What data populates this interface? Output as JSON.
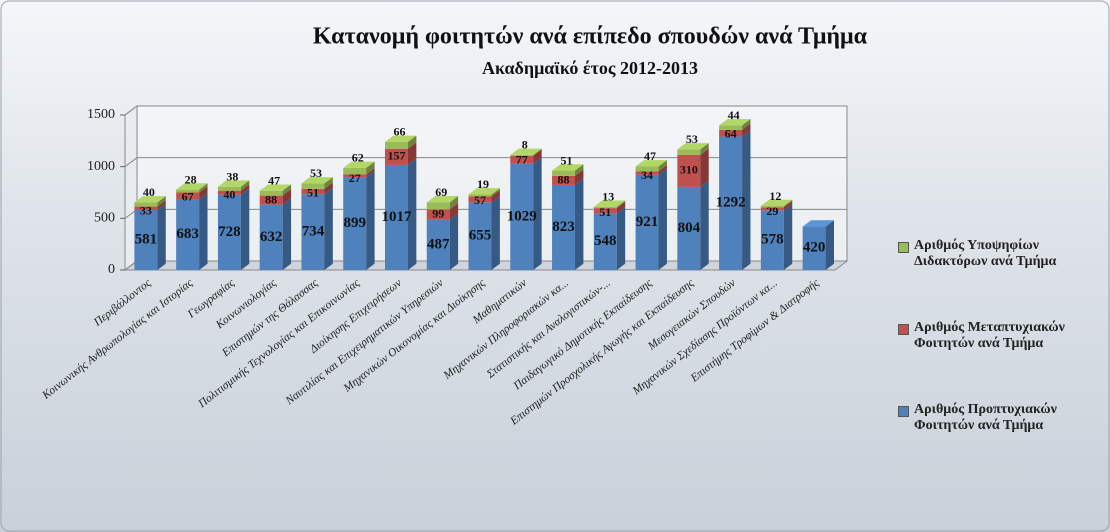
{
  "chart_data": {
    "type": "stacked_bar_3d",
    "title": "Κατανομή φοιτητών ανά επίπεδο σπουδών ανά Τμήμα",
    "subtitle": "Ακαδημαϊκό έτος 2012-2013",
    "categories": [
      "Περιβάλλοντος",
      "Κοινωνικής Ανθρωπολογίας και Ιστορίας",
      "Γεωγραφίας",
      "Κοινωνιολογίας",
      "Επιστημών της Θάλασσας",
      "Πολιτισμικής Τεχνολογίας και Επικοινωνίας",
      "Διοίκησης Επιχειρήσεων",
      "Ναυτιλίας και Επιχειρηματικών Υπηρεσιών",
      "Μηχανικών Οικονομίας και Διοίκησης",
      "Μαθηματικών",
      "Μηχανικών Πληροφοριακών κα...",
      "Στατιστικής και Αναλογιστικών-...",
      "Παιδαγωγικό Δημοτικής Εκπαίδευσης",
      "Επιστημών Προσχολικής Αγωγής και Εκπαίδευσης",
      "Μεσογειακών Σπουδών",
      "Μηχανικών Σχεδίασης Προϊόντων κα...",
      "Επιστήμης Τροφίμων & Διατροφής"
    ],
    "series": [
      {
        "name": "Αριθμός Προπτυχιακών Φοιτητών ανά Τμήμα",
        "color": "#4f81bd",
        "values": [
          581,
          683,
          728,
          632,
          734,
          899,
          1017,
          487,
          655,
          1029,
          823,
          548,
          921,
          804,
          1292,
          578,
          420
        ]
      },
      {
        "name": "Αριθμός Μεταπτυχιακών Φοιτητών ανά Τμήμα",
        "color": "#c0504d",
        "values": [
          33,
          67,
          40,
          88,
          51,
          27,
          157,
          99,
          57,
          77,
          88,
          51,
          34,
          310,
          64,
          29,
          null
        ]
      },
      {
        "name": "Αριθμός Υποψηφίων Διδακτόρων ανά Τμήμα",
        "color": "#9bbb59",
        "values": [
          40,
          28,
          38,
          47,
          53,
          62,
          66,
          69,
          19,
          8,
          51,
          13,
          47,
          53,
          44,
          12,
          null
        ]
      }
    ],
    "ylim": [
      0,
      1500
    ],
    "yticks": [
      0,
      500,
      1000,
      1500
    ],
    "grid": true,
    "legend": "right"
  }
}
